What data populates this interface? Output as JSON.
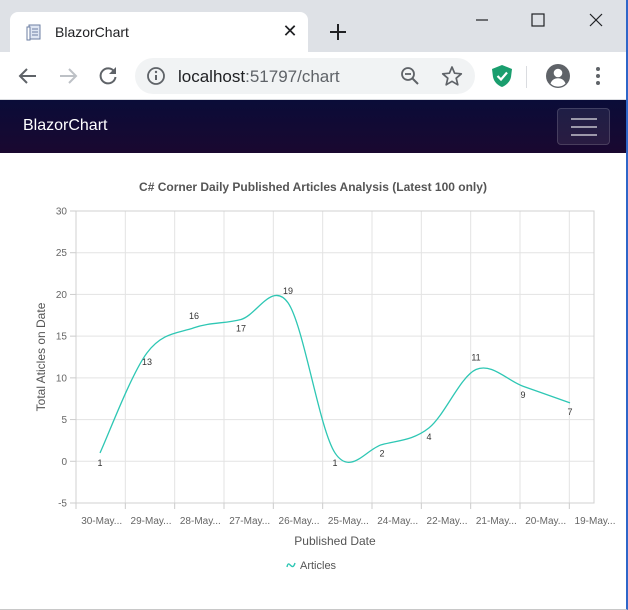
{
  "browser": {
    "tab_title": "BlazorChart",
    "url_host": "localhost",
    "url_rest": ":51797/chart"
  },
  "app": {
    "brand": "BlazorChart"
  },
  "colors": {
    "series": "#2ec7b4",
    "navbar": "#0d0b33"
  },
  "chart_data": {
    "type": "line",
    "title": "C# Corner Daily Published Articles Analysis (Latest 100 only)",
    "xlabel": "Published Date",
    "ylabel": "Total Aticles on Date",
    "ylim": [
      -5,
      30
    ],
    "yticks": [
      -5,
      0,
      5,
      10,
      15,
      20,
      25,
      30
    ],
    "grid": true,
    "legend_position": "bottom",
    "categories": [
      "30-May...",
      "29-May...",
      "28-May...",
      "27-May...",
      "26-May...",
      "25-May...",
      "24-May...",
      "22-May...",
      "21-May...",
      "20-May...",
      "19-May..."
    ],
    "series": [
      {
        "name": "Articles",
        "values": [
          1,
          13,
          16,
          17,
          19,
          1,
          2,
          4,
          11,
          9,
          7
        ]
      }
    ]
  }
}
